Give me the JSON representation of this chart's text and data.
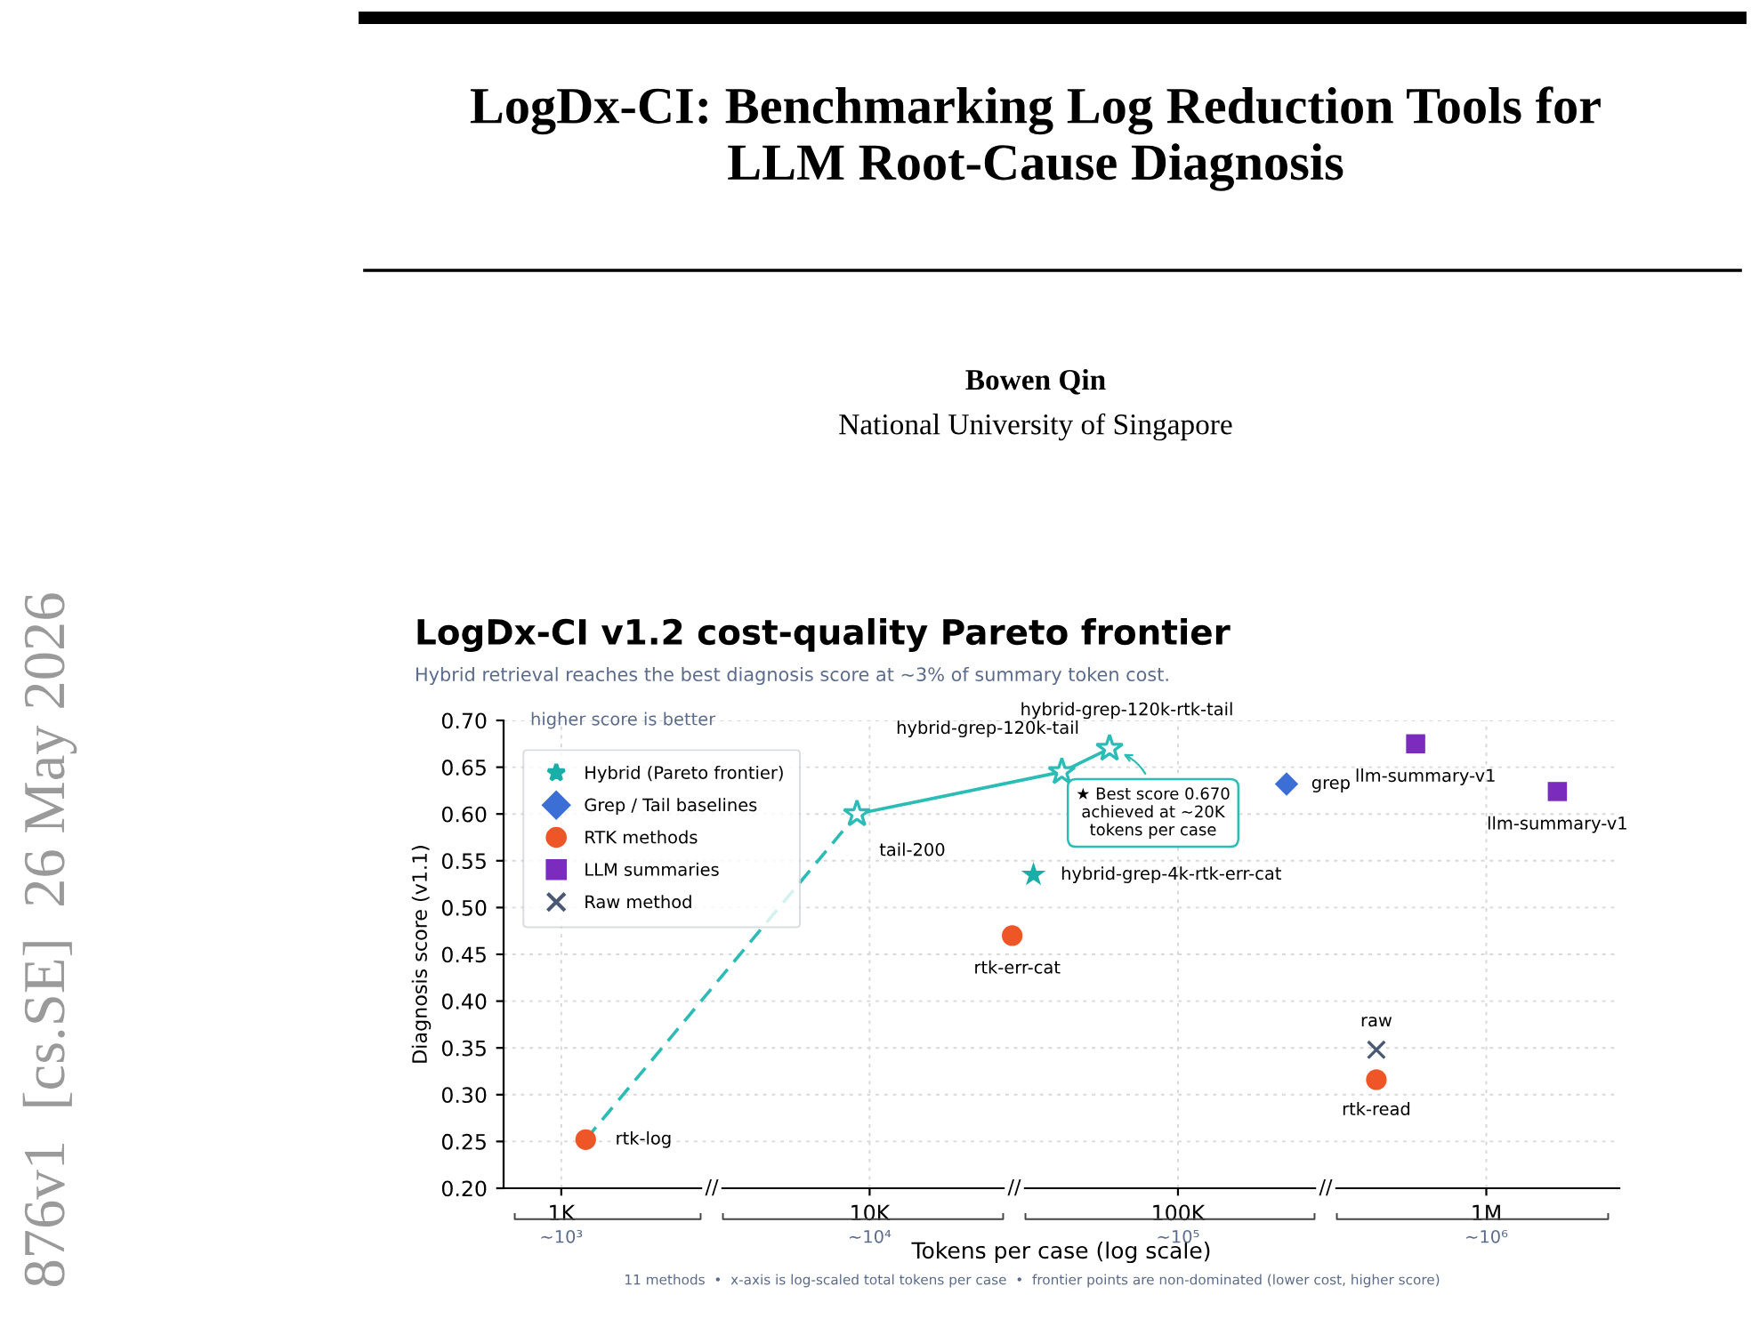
{
  "chart_data": {
    "type": "scatter",
    "title": "LogDx-CI v1.2 cost-quality Pareto frontier",
    "subtitle": "Hybrid retrieval reaches the best diagnosis score at ~3% of summary token cost.",
    "xlabel": "Tokens per case (log scale)",
    "ylabel": "Diagnosis score (v1.1)",
    "log": "x",
    "xlim": [
      650,
      2700000
    ],
    "xticks": [
      {
        "value": 1000,
        "label": "1K"
      },
      {
        "value": 10000,
        "label": "10K"
      },
      {
        "value": 100000,
        "label": "100K"
      },
      {
        "value": 1000000,
        "label": "1M"
      }
    ],
    "ylim": [
      0.2,
      0.7
    ],
    "yticks": [
      {
        "value": 0.2,
        "label": "0.20"
      },
      {
        "value": 0.25,
        "label": "0.25"
      },
      {
        "value": 0.3,
        "label": "0.30"
      },
      {
        "value": 0.35,
        "label": "0.35"
      },
      {
        "value": 0.4,
        "label": "0.40"
      },
      {
        "value": 0.45,
        "label": "0.45"
      },
      {
        "value": 0.5,
        "label": "0.50"
      },
      {
        "value": 0.55,
        "label": "0.55"
      },
      {
        "value": 0.6,
        "label": "0.60"
      },
      {
        "value": 0.65,
        "label": "0.65"
      },
      {
        "value": 0.7,
        "label": "0.70"
      }
    ],
    "grid": true,
    "legend": "top left",
    "series": [
      {
        "name": "Hybrid (Pareto frontier)",
        "marker": "star",
        "color": "#1aaea8",
        "x": [
          34000
        ],
        "values": [
          0.535
        ]
      },
      {
        "name": "Grep / Tail baselines",
        "marker": "diamond",
        "color": "#3b6fd6",
        "x": [
          225000
        ],
        "values": [
          0.632
        ]
      },
      {
        "name": "RTK methods",
        "marker": "circle",
        "color": "#ee5527",
        "x": [
          1200,
          29000,
          440000
        ],
        "values": [
          0.252,
          0.47,
          0.316
        ]
      },
      {
        "name": "LLM summaries",
        "marker": "square",
        "color": "#7b2cbf",
        "x": [
          590000,
          1700000
        ],
        "values": [
          0.675,
          0.624
        ]
      },
      {
        "name": "Raw method",
        "marker": "cross",
        "color": "#4b5873",
        "x": [
          440000
        ],
        "values": [
          0.348
        ]
      },
      {
        "type": "line",
        "line_style": "dashed",
        "color": "#2bbcb6",
        "x": [
          1200,
          9100
        ],
        "values": [
          0.252,
          0.6
        ]
      },
      {
        "type": "line",
        "line_style": "solid",
        "marker": "star",
        "color": "#2bbcb6",
        "x": [
          9100,
          42000,
          60000
        ],
        "values": [
          0.6,
          0.645,
          0.67
        ]
      }
    ],
    "annotations": [
      "higher score is better",
      {
        "text": "rtk-log",
        "x": 1200,
        "y": 0.252
      },
      {
        "text": "tail-200",
        "x": 9100,
        "y": 0.6
      },
      {
        "text": "hybrid-grep-120k-tail",
        "x": 42000,
        "y": 0.645
      },
      {
        "text": "hybrid-grep-120k-rtk-tail",
        "x": 60000,
        "y": 0.67
      },
      {
        "text": "hybrid-grep-4k-rtk-err-cat",
        "x": 34000,
        "y": 0.535
      },
      {
        "text": "rtk-err-cat",
        "x": 29000,
        "y": 0.47
      },
      {
        "text": "grep",
        "x": 225000,
        "y": 0.632
      },
      {
        "text": "llm-summary-v1",
        "x": 590000,
        "y": 0.675
      },
      {
        "text": "llm-summary-v1",
        "x": 1700000,
        "y": 0.624
      },
      {
        "text": "raw",
        "x": 440000,
        "y": 0.348
      },
      {
        "text": "rtk-read",
        "x": 440000,
        "y": 0.316
      },
      "★ Best score 0.670\nachieved at ~20K\ntokens per case",
      "//",
      "//",
      "//",
      "11 methods  •  x-axis is log-scaled total tokens per case  •  frontier points are non-dominated (lower cost, higher score)",
      "LogDx-CI: Benchmarking Log Reduction Tools for\nLLM Root-Cause Diagnosis",
      "Bowen Qin",
      "National University of Singapore",
      "876v1  [cs.SE]  26 May 2026",
      "~10³",
      "~10⁴",
      "~10⁵",
      "~10⁶"
    ]
  }
}
